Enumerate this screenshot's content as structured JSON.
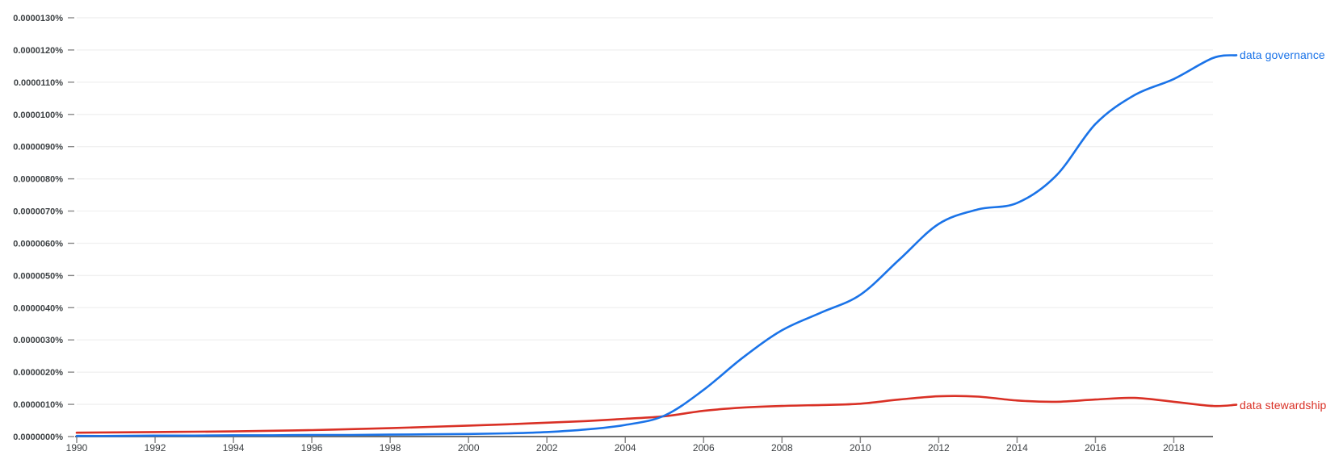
{
  "page": {
    "background": "#ffffff"
  },
  "chart_data": {
    "type": "line",
    "title": "",
    "xlabel": "",
    "ylabel": "",
    "grid": true,
    "legend_position": "line-end-right-labels",
    "x": [
      1990,
      1991,
      1992,
      1993,
      1994,
      1995,
      1996,
      1997,
      1998,
      1999,
      2000,
      2001,
      2002,
      2003,
      2004,
      2005,
      2006,
      2007,
      2008,
      2009,
      2010,
      2011,
      2012,
      2013,
      2014,
      2015,
      2016,
      2017,
      2018,
      2019
    ],
    "x_range": [
      1990,
      2019
    ],
    "x_tick_labels": [
      "1990",
      "1992",
      "1994",
      "1996",
      "1998",
      "2000",
      "2002",
      "2004",
      "2006",
      "2008",
      "2010",
      "2012",
      "2014",
      "2016",
      "2018"
    ],
    "x_tick_years": [
      1990,
      1992,
      1994,
      1996,
      1998,
      2000,
      2002,
      2004,
      2006,
      2008,
      2010,
      2012,
      2014,
      2016,
      2018
    ],
    "y_tick_labels": [
      "0.0000000%",
      "0.0000010%",
      "0.0000020%",
      "0.0000030%",
      "0.0000040%",
      "0.0000050%",
      "0.0000060%",
      "0.0000070%",
      "0.0000080%",
      "0.0000090%",
      "0.0000100%",
      "0.0000110%",
      "0.0000120%",
      "0.0000130%"
    ],
    "ylim_percent": [
      0,
      1.3e-05
    ],
    "value_unit": "percent of corpus",
    "series": [
      {
        "name": "data governance",
        "color": "#1a73e8",
        "values_percent": [
          2e-08,
          2e-08,
          3e-08,
          3e-08,
          4e-08,
          4e-08,
          5e-08,
          5e-08,
          6e-08,
          7e-08,
          8e-08,
          1e-07,
          1.4e-07,
          2.2e-07,
          3.6e-07,
          6.5e-07,
          1.45e-06,
          2.45e-06,
          3.3e-06,
          3.85e-06,
          4.4e-06,
          5.5e-06,
          6.6e-06,
          7.05e-06,
          7.25e-06,
          8.1e-06,
          9.7e-06,
          1.06e-05,
          1.11e-05,
          1.175e-05
        ]
      },
      {
        "name": "data stewardship",
        "color": "#d93025",
        "values_percent": [
          1.2e-07,
          1.3e-07,
          1.4e-07,
          1.5e-07,
          1.6e-07,
          1.8e-07,
          2e-07,
          2.3e-07,
          2.6e-07,
          3e-07,
          3.4e-07,
          3.8e-07,
          4.3e-07,
          4.8e-07,
          5.5e-07,
          6.3e-07,
          8e-07,
          9e-07,
          9.5e-07,
          9.8e-07,
          1.02e-06,
          1.15e-06,
          1.25e-06,
          1.24e-06,
          1.12e-06,
          1.08e-06,
          1.15e-06,
          1.2e-06,
          1.08e-06,
          9.5e-07
        ]
      }
    ],
    "style_colors": {
      "axis_line": "#6f6f6f",
      "tick_mark": "#8a8a8a",
      "tick_label": "#3c4043",
      "gridline": "#f1f1f1"
    }
  }
}
